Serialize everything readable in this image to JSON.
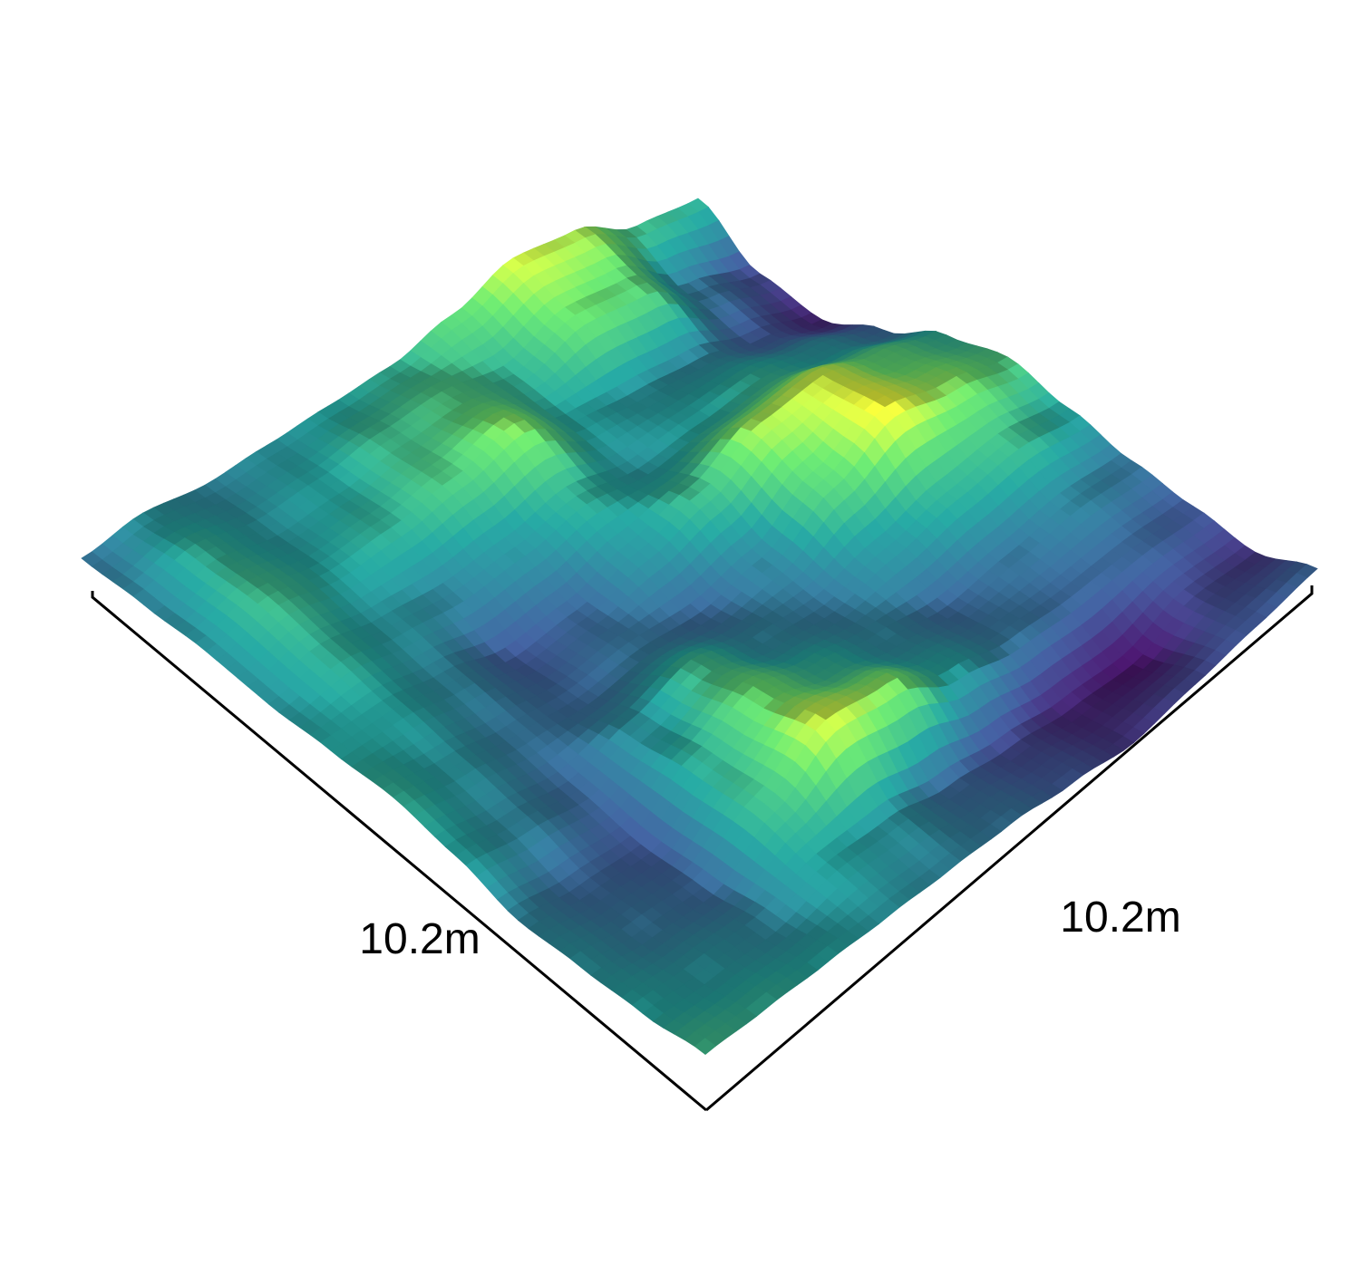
{
  "chart_data": {
    "type": "heatmap",
    "subtype": "3d-surface",
    "title": "",
    "x_axis_label": "10.2m",
    "y_axis_label": "10.2m",
    "extent": {
      "x": 10.2,
      "y": 10.2,
      "unit": "m"
    },
    "colormap": "viridis",
    "colormap_stops": [
      "#440154",
      "#3b528b",
      "#21918c",
      "#5ec962",
      "#fde725"
    ],
    "grid": false,
    "legend": "none",
    "height_grid": [
      [
        0.55,
        0.2,
        0.1,
        0.3,
        0.55,
        0.65,
        0.5,
        0.35,
        0.25,
        0.15,
        0.3
      ],
      [
        0.6,
        0.35,
        0.25,
        0.45,
        0.7,
        0.8,
        0.6,
        0.4,
        0.3,
        0.2,
        0.25
      ],
      [
        0.85,
        0.7,
        0.4,
        0.55,
        0.9,
        0.95,
        0.55,
        0.35,
        0.3,
        0.05,
        0.2
      ],
      [
        0.9,
        0.75,
        0.45,
        0.5,
        0.85,
        0.7,
        0.45,
        0.3,
        0.35,
        0.1,
        0.15
      ],
      [
        0.7,
        0.55,
        0.5,
        0.45,
        0.6,
        0.4,
        0.35,
        0.4,
        0.5,
        0.2,
        0.25
      ],
      [
        0.55,
        0.65,
        0.8,
        0.55,
        0.45,
        0.3,
        0.4,
        0.55,
        0.8,
        0.3,
        0.35
      ],
      [
        0.5,
        0.6,
        0.65,
        0.45,
        0.3,
        0.35,
        0.6,
        0.75,
        0.9,
        0.45,
        0.4
      ],
      [
        0.45,
        0.5,
        0.55,
        0.4,
        0.25,
        0.3,
        0.45,
        0.55,
        0.6,
        0.5,
        0.45
      ],
      [
        0.4,
        0.45,
        0.5,
        0.45,
        0.4,
        0.35,
        0.3,
        0.25,
        0.3,
        0.4,
        0.5
      ],
      [
        0.45,
        0.55,
        0.6,
        0.55,
        0.5,
        0.45,
        0.4,
        0.3,
        0.35,
        0.45,
        0.55
      ],
      [
        0.35,
        0.4,
        0.45,
        0.45,
        0.5,
        0.55,
        0.5,
        0.4,
        0.45,
        0.5,
        0.6
      ]
    ]
  }
}
